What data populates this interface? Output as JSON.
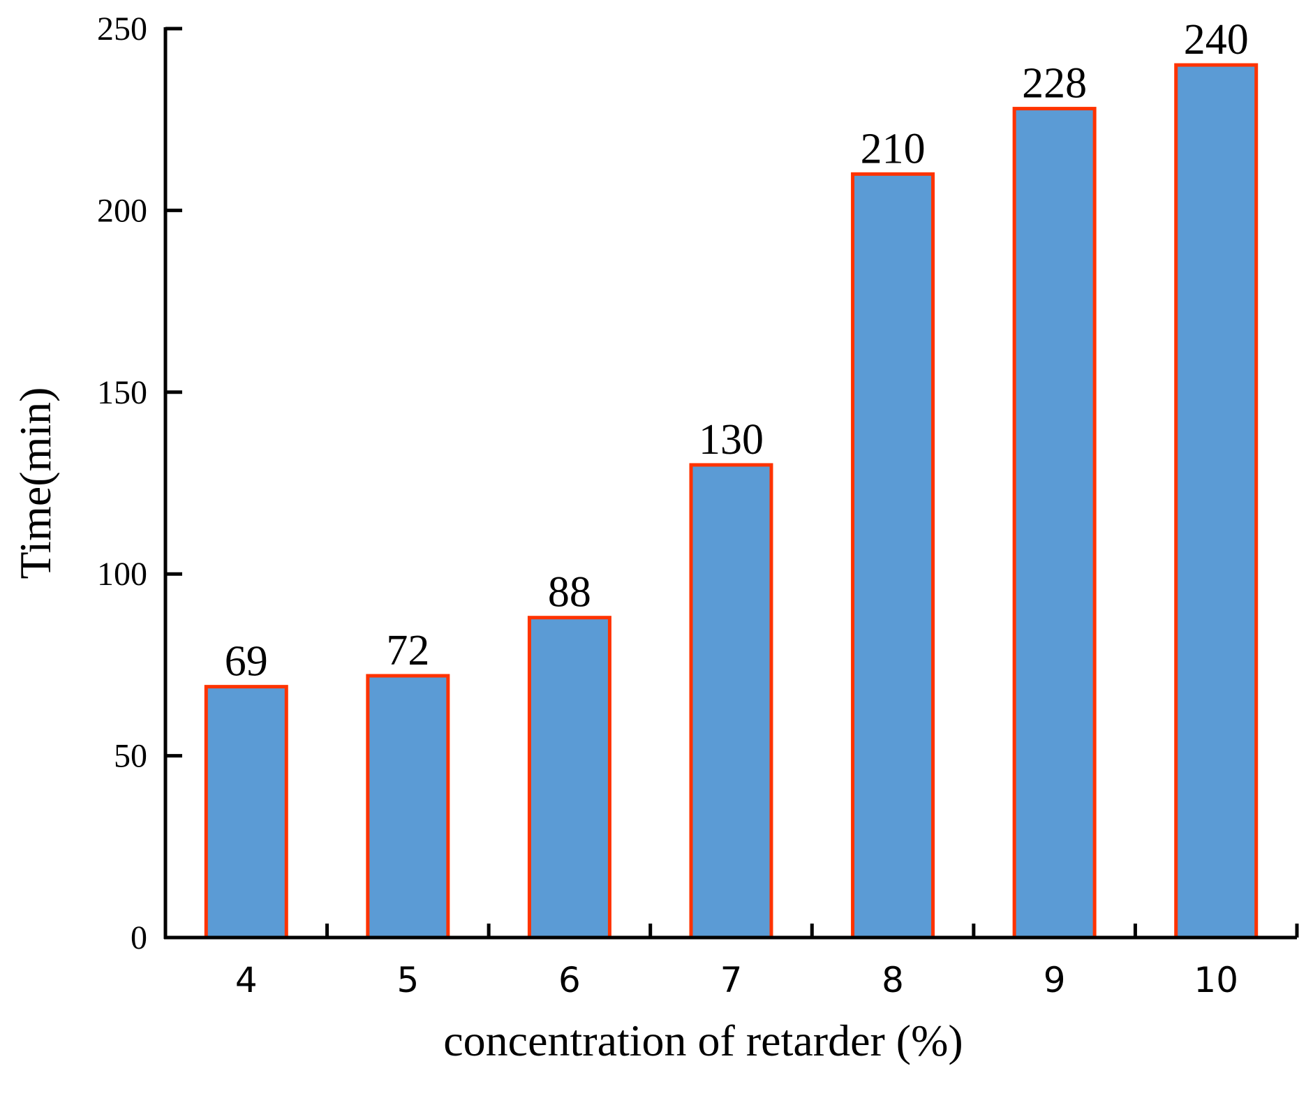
{
  "chart_data": {
    "type": "bar",
    "title": "",
    "xlabel": "concentration of retarder (%)",
    "ylabel": "Time(min)",
    "categories": [
      "4",
      "5",
      "6",
      "7",
      "8",
      "9",
      "10"
    ],
    "values": [
      69,
      72,
      88,
      130,
      210,
      228,
      240
    ],
    "data_labels": [
      "69",
      "72",
      "88",
      "130",
      "210",
      "228",
      "240"
    ],
    "ylim": [
      0,
      250
    ],
    "yticks": [
      0,
      50,
      100,
      150,
      200,
      250
    ],
    "ytick_labels": [
      "0",
      "50",
      "100",
      "150",
      "200",
      "250"
    ],
    "grid": false,
    "legend": "none",
    "bar_fill": "#5b9bd5",
    "bar_edge": "#ff3300"
  }
}
